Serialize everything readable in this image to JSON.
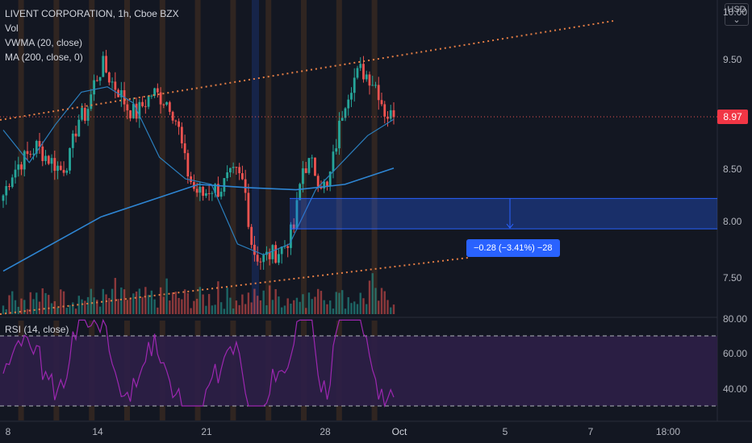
{
  "legend": {
    "symbol": "LIVENT CORPORATION, 1h, Cboe BZX",
    "vol": "Vol",
    "vwma": "VWMA (20, close)",
    "ma": "MA (200, close, 0)"
  },
  "currency_button": {
    "line1": "USD",
    "line2": "⌄"
  },
  "last_price": "8.97",
  "measure": {
    "label": "−0.28 (−3.41%) −28"
  },
  "rsi": {
    "label": "RSI (14, close)",
    "ticks": [
      "80.00",
      "60.00",
      "40.00"
    ]
  },
  "price_axis": {
    "ticks": [
      "10.00",
      "9.50",
      "8.50",
      "8.00",
      "7.50"
    ]
  },
  "time_axis": {
    "ticks": [
      "8",
      "14",
      "21",
      "28",
      "Oct",
      "5",
      "7",
      "18:00"
    ]
  },
  "colors": {
    "background": "#131722",
    "up": "#26a69a",
    "down": "#ef5350",
    "trendline": "#e67e45",
    "vwma": "#2b7fbe",
    "ma": "#2e86d4",
    "rsi_line": "#9c27b0",
    "rsi_band": "#2d1f47",
    "session_stripe": "#b86b1f",
    "measure": "#2962ff"
  },
  "chart_data": {
    "type": "candlestick",
    "title": "LIVENT CORPORATION, 1h, Cboe BZX",
    "currency": "USD",
    "ylim": [
      7.25,
      10.1
    ],
    "x_labels": [
      "8",
      "14",
      "21",
      "28",
      "Oct",
      "5",
      "7",
      "18:00"
    ],
    "last_close": 8.97,
    "price_path": [
      [
        8.25,
        8.45
      ],
      [
        8.55,
        8.62
      ],
      [
        8.7,
        8.62
      ],
      [
        8.55,
        8.48
      ],
      [
        8.6,
        8.95
      ],
      [
        9.0,
        9.3
      ],
      [
        9.45,
        9.3
      ],
      [
        9.2,
        9.05
      ],
      [
        9.0,
        9.1
      ],
      [
        9.2,
        9.15
      ],
      [
        9.1,
        8.9
      ],
      [
        8.5,
        8.3
      ],
      [
        8.25,
        8.32
      ],
      [
        8.3,
        8.4
      ],
      [
        8.45,
        8.35
      ],
      [
        7.75,
        7.65
      ],
      [
        7.7,
        7.72
      ],
      [
        7.8,
        7.95
      ],
      [
        8.5,
        8.55
      ],
      [
        8.4,
        8.3
      ],
      [
        8.7,
        9.1
      ],
      [
        9.3,
        9.4
      ],
      [
        9.35,
        9.25
      ],
      [
        9.0,
        8.97
      ]
    ],
    "series": [
      {
        "name": "VWMA (20, close)",
        "values": [
          8.85,
          8.55,
          8.9,
          9.2,
          9.25,
          9.1,
          8.6,
          8.4,
          8.35,
          7.8,
          7.7,
          7.8,
          8.3,
          8.55,
          8.8,
          8.95
        ]
      },
      {
        "name": "MA (200, close, 0)",
        "values": [
          7.55,
          7.8,
          8.05,
          8.2,
          8.35,
          8.32,
          8.3,
          8.35,
          8.5
        ]
      }
    ],
    "trendlines": [
      {
        "from": [
          0,
          9.3
        ],
        "to": [
          1,
          9.95
        ]
      },
      {
        "from": [
          0,
          7.15
        ],
        "to": [
          1,
          7.65
        ]
      }
    ],
    "measure": {
      "from_price": 8.22,
      "to_price": 7.94,
      "change": -0.28,
      "change_pct": -3.41,
      "bars": -28
    },
    "rsi": {
      "upper": 70,
      "lower": 30,
      "ylim": [
        30,
        80
      ],
      "ticks": [
        80,
        60,
        40
      ]
    }
  }
}
